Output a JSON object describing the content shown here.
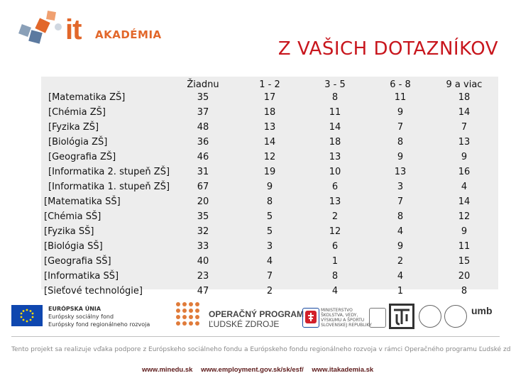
{
  "brand": {
    "it": "it",
    "akademia": "AKADÉMIA"
  },
  "title": "Z VAŠICH DOTAZNÍKOV",
  "table": {
    "columns": [
      "Žiadnu",
      "1 - 2",
      "3 - 5",
      "6 - 8",
      "9 a viac"
    ],
    "rows": [
      {
        "label": "[Matematika ZŠ]",
        "values": [
          "35",
          "17",
          "8",
          "11",
          "18"
        ]
      },
      {
        "label": "[Chémia ZŠ]",
        "values": [
          "37",
          "18",
          "11",
          "9",
          "14"
        ]
      },
      {
        "label": "[Fyzika ZŠ]",
        "values": [
          "48",
          "13",
          "14",
          "7",
          "7"
        ]
      },
      {
        "label": "[Biológia ZŠ]",
        "values": [
          "36",
          "14",
          "18",
          "8",
          "13"
        ]
      },
      {
        "label": "[Geografia ZŠ]",
        "values": [
          "46",
          "12",
          "13",
          "9",
          "9"
        ]
      },
      {
        "label": "[Informatika 2. stupeň ZŠ]",
        "values": [
          "31",
          "19",
          "10",
          "13",
          "16"
        ]
      },
      {
        "label": "[Informatika 1. stupeň ZŠ]",
        "values": [
          "67",
          "9",
          "6",
          "3",
          "4"
        ]
      },
      {
        "label": "[Matematika SŠ]",
        "values": [
          "20",
          "8",
          "13",
          "7",
          "14"
        ]
      },
      {
        "label": "[Chémia SŠ]",
        "values": [
          "35",
          "5",
          "2",
          "8",
          "12"
        ]
      },
      {
        "label": "[Fyzika SŠ]",
        "values": [
          "32",
          "5",
          "12",
          "4",
          "9"
        ]
      },
      {
        "label": "[Biológia SŠ]",
        "values": [
          "33",
          "3",
          "6",
          "9",
          "11"
        ]
      },
      {
        "label": "[Geografia SŠ]",
        "values": [
          "40",
          "4",
          "1",
          "2",
          "15"
        ]
      },
      {
        "label": "[Informatika SŠ]",
        "values": [
          "23",
          "7",
          "8",
          "4",
          "20"
        ]
      },
      {
        "label": "[Sieťové technológie]",
        "values": [
          "47",
          "2",
          "4",
          "1",
          "8"
        ]
      }
    ]
  },
  "footer": {
    "eu_lines": [
      "EURÓPSKA ÚNIA",
      "Európsky sociálny fond",
      "Európsky fond regionálneho rozvoja"
    ],
    "op_lines": [
      "OPERAČNÝ PROGRAM",
      "ĽUDSKÉ ZDROJE"
    ],
    "ministry_lines": [
      "MINISTERSTVO",
      "ŠKOLSTVA, VEDY,",
      "VÝSKUMU A ŠPORTU",
      "SLOVENSKEJ REPUBLIKY"
    ],
    "umb": "umb",
    "notice": "Tento projekt sa realizuje vďaka podpore z Európskeho sociálneho fondu a Európskeho fondu regionálneho rozvoja v rámci Operačného programu Ľudské zdroje",
    "links": [
      "www.minedu.sk",
      "www.employment.gov.sk/sk/esf/",
      "www.itakademia.sk"
    ]
  },
  "colors": {
    "title": "#c8161d",
    "brand": "#e2672a",
    "panel": "#ededed"
  }
}
